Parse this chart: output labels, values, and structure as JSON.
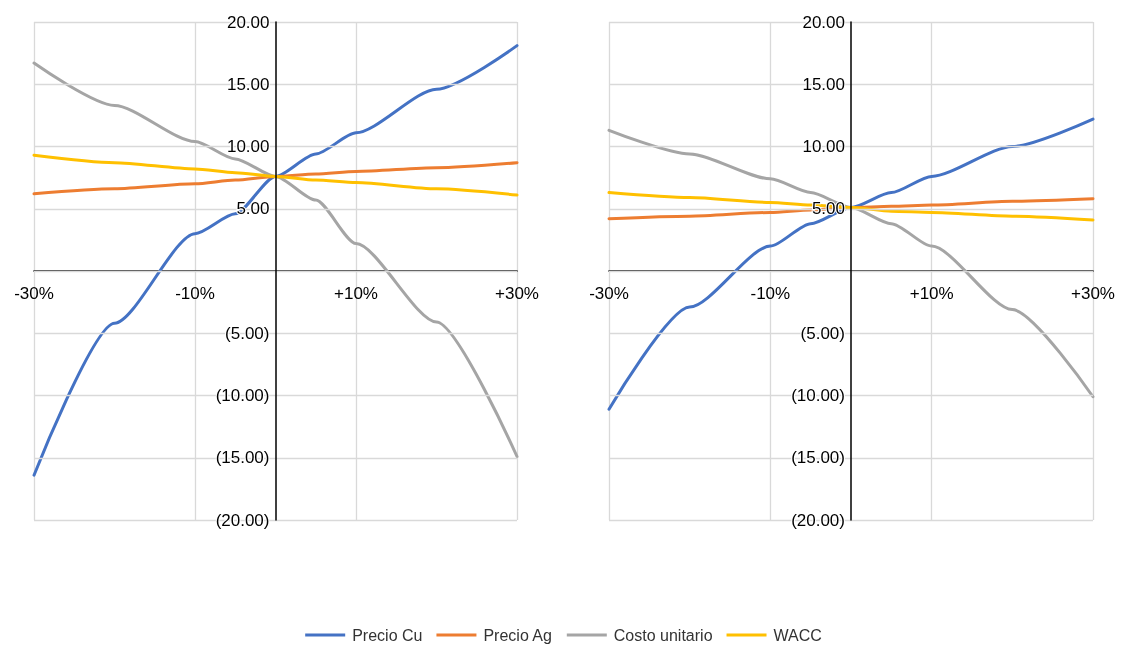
{
  "chart_data": [
    {
      "type": "line",
      "x": [
        -30,
        -20,
        -10,
        -5,
        0,
        5,
        10,
        20,
        30
      ],
      "xlim": [
        -30,
        30
      ],
      "ylim": [
        -20,
        20
      ],
      "xticks": [
        {
          "value": -30,
          "label": "-30%"
        },
        {
          "value": -10,
          "label": "-10%"
        },
        {
          "value": 10,
          "label": "+10%"
        },
        {
          "value": 30,
          "label": "+30%"
        }
      ],
      "yticks": [
        {
          "value": -20,
          "label": "(20.00)"
        },
        {
          "value": -15,
          "label": "(15.00)"
        },
        {
          "value": -10,
          "label": "(10.00)"
        },
        {
          "value": -5,
          "label": "(5.00)"
        },
        {
          "value": 0,
          "label": null
        },
        {
          "value": 5,
          "label": "5.00"
        },
        {
          "value": 10,
          "label": "10.00"
        },
        {
          "value": 15,
          "label": "15.00"
        },
        {
          "value": 20,
          "label": "20.00"
        }
      ],
      "grid": true,
      "legend": "bottom",
      "marker": "none",
      "series": [
        {
          "name": "Precio Cu",
          "color": "#4472c4",
          "values": [
            -16.4,
            -4.2,
            3.0,
            4.6,
            7.6,
            9.4,
            11.1,
            14.6,
            18.1
          ]
        },
        {
          "name": "Precio Ag",
          "color": "#ed7d31",
          "values": [
            6.2,
            6.6,
            7.0,
            7.3,
            7.6,
            7.8,
            8.0,
            8.3,
            8.7
          ]
        },
        {
          "name": "Costo unitario",
          "color": "#a5a5a5",
          "values": [
            16.7,
            13.3,
            10.4,
            9.0,
            7.6,
            5.7,
            2.2,
            -4.1,
            -14.9
          ]
        },
        {
          "name": "WACC",
          "color": "#ffc000",
          "values": [
            9.3,
            8.7,
            8.2,
            7.9,
            7.6,
            7.3,
            7.1,
            6.6,
            6.1
          ]
        }
      ]
    },
    {
      "type": "line",
      "x": [
        -30,
        -20,
        -10,
        -5,
        0,
        5,
        10,
        20,
        30
      ],
      "xlim": [
        -30,
        30
      ],
      "ylim": [
        -20,
        20
      ],
      "xticks": [
        {
          "value": -30,
          "label": "-30%"
        },
        {
          "value": -10,
          "label": "-10%"
        },
        {
          "value": 10,
          "label": "+10%"
        },
        {
          "value": 30,
          "label": "+30%"
        }
      ],
      "yticks": [
        {
          "value": -20,
          "label": "(20.00)"
        },
        {
          "value": -15,
          "label": "(15.00)"
        },
        {
          "value": -10,
          "label": "(10.00)"
        },
        {
          "value": -5,
          "label": "(5.00)"
        },
        {
          "value": 0,
          "label": null
        },
        {
          "value": 5,
          "label": "5.00"
        },
        {
          "value": 10,
          "label": "10.00"
        },
        {
          "value": 15,
          "label": "15.00"
        },
        {
          "value": 20,
          "label": "20.00"
        }
      ],
      "grid": true,
      "marker": "none",
      "series": [
        {
          "color": "#4472c4",
          "values": [
            -11.1,
            -2.9,
            2.0,
            3.8,
            5.1,
            6.3,
            7.6,
            10.0,
            12.2
          ]
        },
        {
          "color": "#ed7d31",
          "values": [
            4.2,
            4.4,
            4.7,
            4.9,
            5.1,
            5.2,
            5.3,
            5.6,
            5.8
          ]
        },
        {
          "color": "#a5a5a5",
          "values": [
            11.3,
            9.4,
            7.4,
            6.3,
            5.1,
            3.8,
            2.0,
            -3.1,
            -10.1
          ]
        },
        {
          "color": "#ffc000",
          "values": [
            6.3,
            5.9,
            5.5,
            5.3,
            5.1,
            4.8,
            4.7,
            4.4,
            4.1
          ]
        }
      ]
    }
  ]
}
